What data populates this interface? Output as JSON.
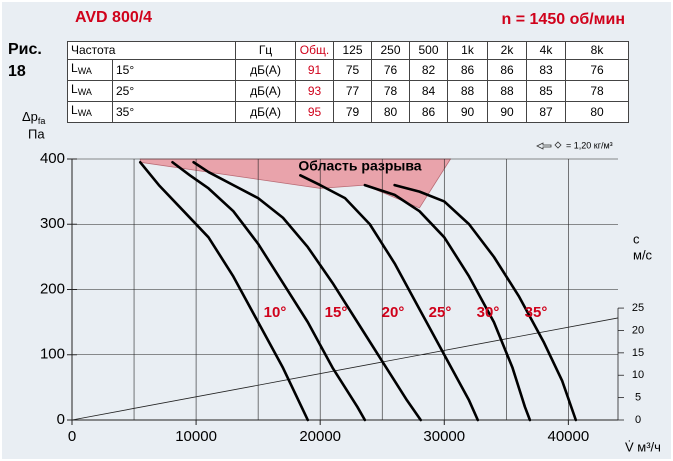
{
  "header": {
    "model": "AVD 800/4",
    "speed": "n = 1450 об/мин",
    "figure": "Рис.",
    "figure_number": "18"
  },
  "table": {
    "header": [
      "Частота",
      "Гц",
      "Общ.",
      "125",
      "250",
      "500",
      "1k",
      "2k",
      "4k",
      "8k"
    ],
    "rows": [
      {
        "quantity": "L",
        "quantity_sub": "WA",
        "angle": "15°",
        "unit": "дБ(А)",
        "total": "91",
        "values": [
          "75",
          "76",
          "82",
          "86",
          "86",
          "83",
          "76"
        ]
      },
      {
        "quantity": "L",
        "quantity_sub": "WA",
        "angle": "25°",
        "unit": "дБ(А)",
        "total": "93",
        "values": [
          "77",
          "78",
          "84",
          "88",
          "88",
          "85",
          "78"
        ]
      },
      {
        "quantity": "L",
        "quantity_sub": "WA",
        "angle": "35°",
        "unit": "дБ(А)",
        "total": "95",
        "values": [
          "79",
          "80",
          "86",
          "90",
          "90",
          "87",
          "80"
        ]
      }
    ]
  },
  "chart_data": {
    "type": "line",
    "ylabel": "Δp",
    "ylabel_sub": "fa",
    "ylabel_unit": "Па",
    "xlabel": "V̇ м³/ч",
    "y2label": "c",
    "y2label_unit": "м/с",
    "density_note": "= 1,20 кг/м³",
    "xlim": [
      0,
      44000
    ],
    "ylim": [
      0,
      400
    ],
    "y2lim": [
      0,
      58.3
    ],
    "xticks": [
      0,
      10000,
      20000,
      30000,
      40000
    ],
    "xminor": [
      5000,
      15000,
      25000,
      35000
    ],
    "yticks": [
      0,
      100,
      200,
      300,
      400
    ],
    "y2ticks": [
      0,
      5,
      10,
      15,
      20,
      25
    ],
    "grid": true,
    "stall_region": {
      "label": "Область разрыва",
      "color": "#e9a3ab",
      "x": [
        5500,
        30500,
        28000,
        23600,
        20000,
        5500
      ],
      "y": [
        400,
        400,
        325,
        360,
        355,
        395
      ]
    },
    "velocity_line": {
      "axis": "y2",
      "x": [
        0,
        44000
      ],
      "values": [
        0,
        22.8
      ]
    },
    "series": [
      {
        "name": "10°",
        "color": "#000000",
        "x": [
          5500,
          7000,
          9000,
          11000,
          13000,
          15000,
          17000,
          18500,
          19000
        ],
        "values": [
          395,
          360,
          320,
          280,
          220,
          150,
          80,
          20,
          0
        ]
      },
      {
        "name": "15°",
        "color": "#000000",
        "x": [
          8100,
          9500,
          11000,
          13000,
          15000,
          17000,
          19000,
          21000,
          23000,
          23600
        ],
        "values": [
          395,
          375,
          355,
          320,
          270,
          210,
          150,
          80,
          20,
          0
        ]
      },
      {
        "name": "20°",
        "color": "#000000",
        "x": [
          9800,
          11000,
          13000,
          15000,
          17000,
          19000,
          21000,
          23000,
          25000,
          27000,
          28100
        ],
        "values": [
          395,
          380,
          360,
          340,
          310,
          265,
          210,
          150,
          90,
          30,
          0
        ]
      },
      {
        "name": "25°",
        "color": "#000000",
        "x": [
          18400,
          20000,
          22000,
          24000,
          26000,
          28000,
          30000,
          32000,
          32700
        ],
        "values": [
          375,
          360,
          340,
          300,
          240,
          170,
          100,
          30,
          0
        ]
      },
      {
        "name": "30°",
        "color": "#000000",
        "x": [
          23600,
          26000,
          28000,
          30000,
          32000,
          34000,
          35500,
          36500,
          36900
        ],
        "values": [
          360,
          345,
          320,
          280,
          220,
          150,
          80,
          20,
          0
        ]
      },
      {
        "name": "35°",
        "color": "#000000",
        "x": [
          26000,
          28000,
          30000,
          32000,
          34000,
          36000,
          38000,
          39500,
          40600
        ],
        "values": [
          360,
          350,
          335,
          300,
          250,
          190,
          120,
          60,
          0
        ]
      }
    ]
  }
}
